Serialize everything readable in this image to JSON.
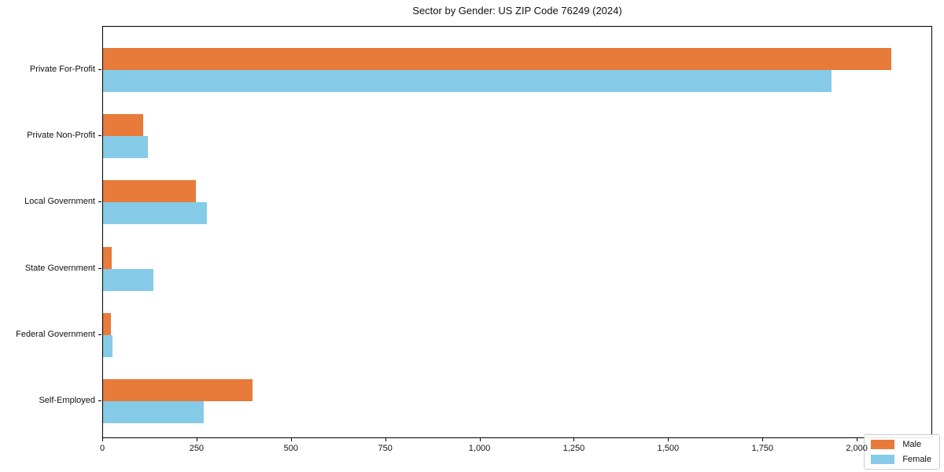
{
  "chart_data": {
    "type": "bar",
    "orientation": "horizontal",
    "title": "Sector by Gender: US ZIP Code 76249 (2024)",
    "categories": [
      "Private For-Profit",
      "Private Non-Profit",
      "Local Government",
      "State Government",
      "Federal Government",
      "Self-Employed"
    ],
    "series": [
      {
        "name": "Male",
        "color": "#e87a3a",
        "values": [
          2090,
          107,
          247,
          22,
          20,
          396
        ]
      },
      {
        "name": "Female",
        "color": "#85cbe8",
        "values": [
          1930,
          119,
          276,
          133,
          24,
          266
        ]
      }
    ],
    "xlim": [
      0,
      2200
    ],
    "xticks": [
      0,
      250,
      500,
      750,
      1000,
      1250,
      1500,
      1750,
      2000
    ],
    "xtick_labels": [
      "0",
      "250",
      "500",
      "750",
      "1,000",
      "1,250",
      "1,500",
      "1,750",
      "2,000"
    ],
    "xlabel": "",
    "ylabel": "",
    "grid": false,
    "legend": {
      "position": "lower right",
      "entries": [
        "Male",
        "Female"
      ]
    }
  },
  "colors": {
    "male_bar": "#e87a3a",
    "female_bar": "#85cbe8",
    "axis": "#000000",
    "legend_border": "#cccccc",
    "background": "#ffffff"
  }
}
